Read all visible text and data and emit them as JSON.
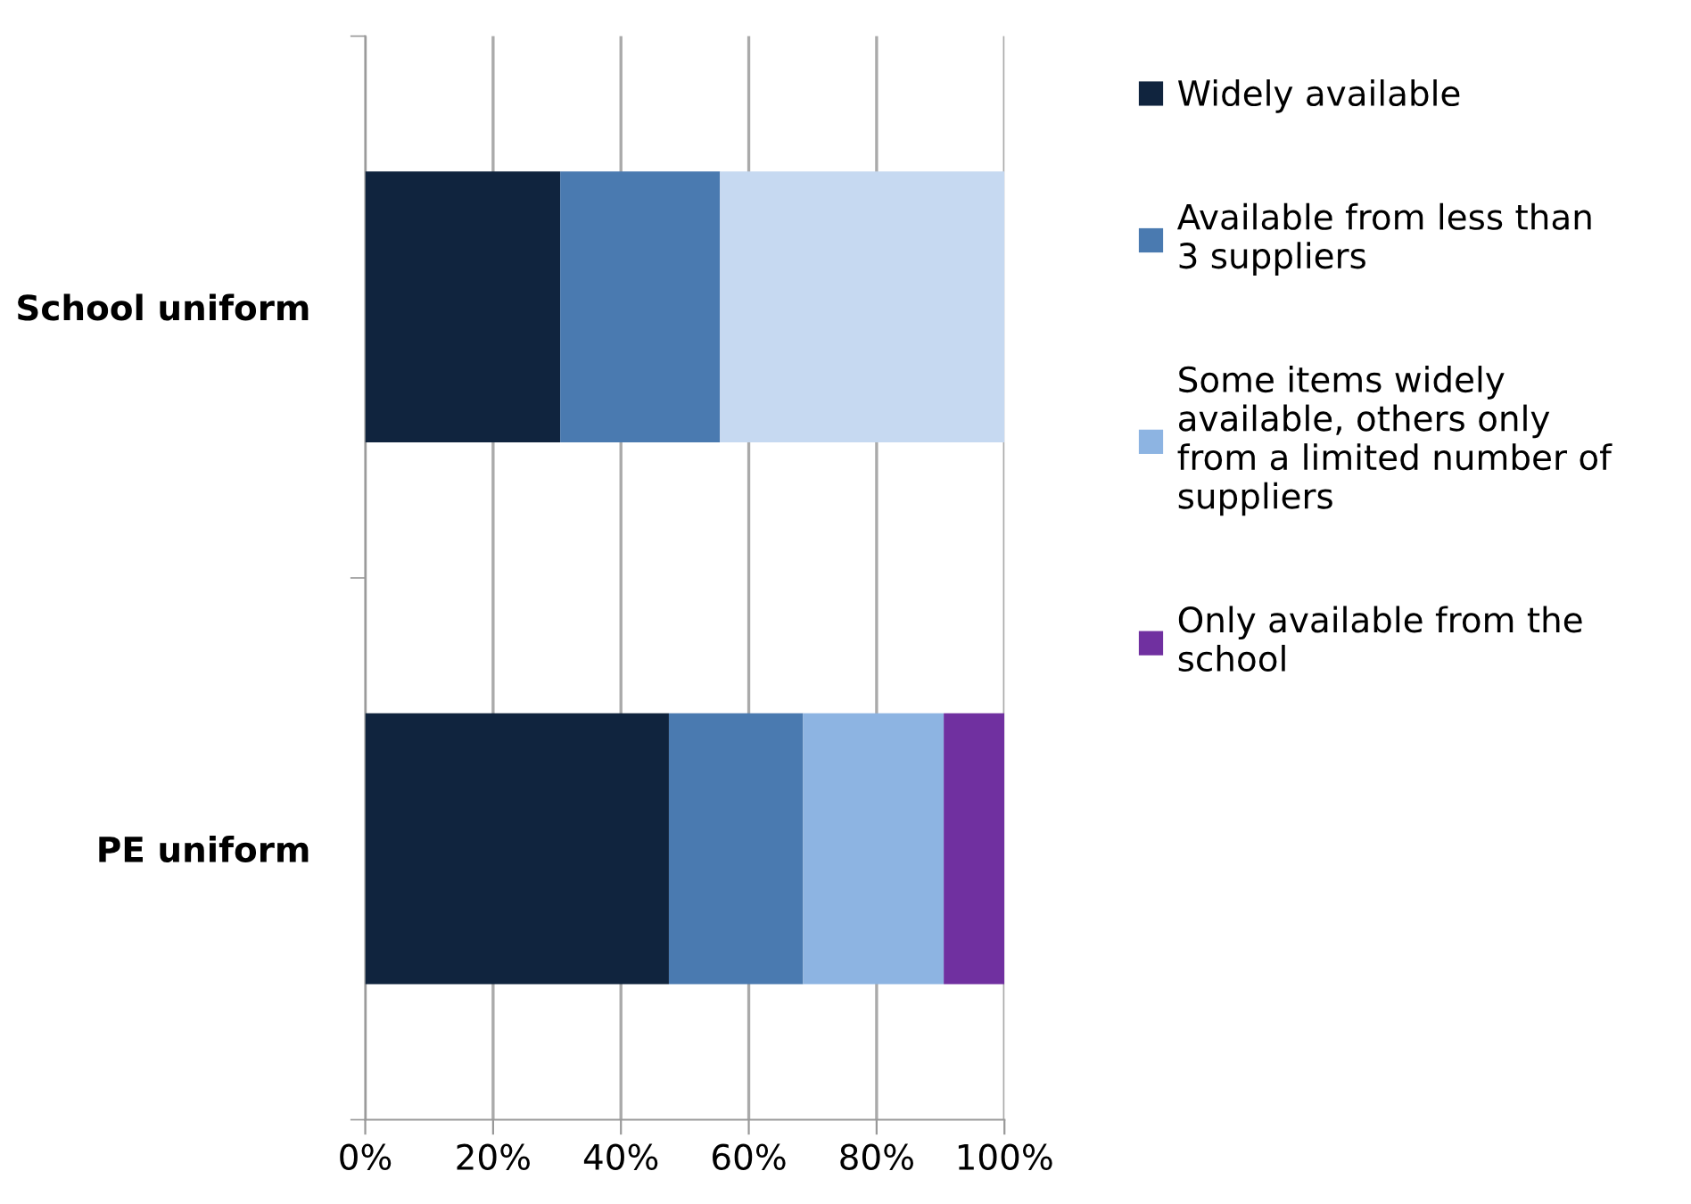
{
  "chart_data": {
    "type": "bar",
    "orientation": "horizontal",
    "stacked": true,
    "categories": [
      "School uniform",
      "PE uniform"
    ],
    "series": [
      {
        "name": "Widely available",
        "color": "#10243e",
        "values": [
          30.5,
          47.5
        ]
      },
      {
        "name": "Available from less than 3 suppliers",
        "color": "#4a7ab0",
        "values": [
          25,
          21
        ]
      },
      {
        "name": "Some items widely available, others only from a limited number of suppliers",
        "color": "#8db4e2",
        "colors": [
          "#c6d9f1",
          "#8db4e2"
        ],
        "values": [
          44.5,
          22
        ]
      },
      {
        "name": "Only available from the school",
        "color": "#7030a0",
        "values": [
          null,
          9.5
        ]
      }
    ],
    "xlim": [
      0,
      100
    ],
    "xticks": [
      {
        "value": 0,
        "label": "0%"
      },
      {
        "value": 20,
        "label": "20%"
      },
      {
        "value": 40,
        "label": "40%"
      },
      {
        "value": 60,
        "label": "60%"
      },
      {
        "value": 80,
        "label": "80%"
      },
      {
        "value": 100,
        "label": "100%"
      }
    ],
    "grid": "x",
    "legend": "right"
  }
}
